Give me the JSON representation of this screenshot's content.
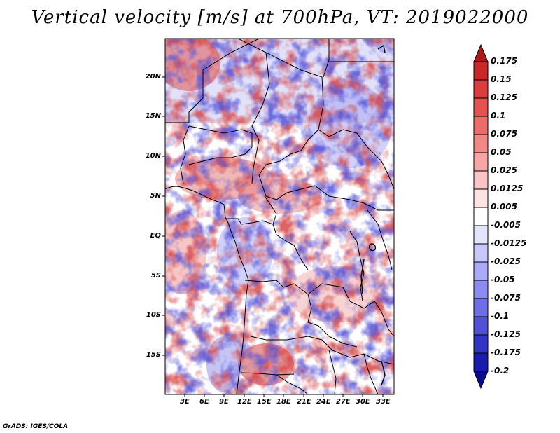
{
  "title": "Vertical velocity [m/s] at 700hPa, VT: 2019022000",
  "credit": "GrADS: IGES/COLA",
  "map": {
    "lat_labels": [
      "20N",
      "15N",
      "10N",
      "5N",
      "EQ",
      "5S",
      "10S",
      "15S"
    ],
    "lon_labels": [
      "3E",
      "6E",
      "9E",
      "12E",
      "15E",
      "18E",
      "21E",
      "24E",
      "27E",
      "30E",
      "33E"
    ],
    "colors": {
      "positive": "#d03030",
      "negative": "#4040d0",
      "border": "#000000"
    }
  },
  "colorbar": {
    "levels": [
      "0.175",
      "0.15",
      "0.125",
      "0.1",
      "0.075",
      "0.05",
      "0.025",
      "0.0125",
      "0.005",
      "-0.005",
      "-0.0125",
      "-0.025",
      "-0.05",
      "-0.075",
      "-0.1",
      "-0.125",
      "-0.175",
      "-0.2"
    ],
    "colors": [
      "#b01818",
      "#c82828",
      "#dc3c3c",
      "#e45252",
      "#ec6c6c",
      "#f28888",
      "#f6a6a6",
      "#fac4c4",
      "#fde2e2",
      "#ffffff",
      "#e4e4fe",
      "#c8c8fc",
      "#aaaaf8",
      "#8c8cf0",
      "#6e6ee6",
      "#5050d8",
      "#3434c4",
      "#1c1cac",
      "#0a0a90"
    ]
  }
}
